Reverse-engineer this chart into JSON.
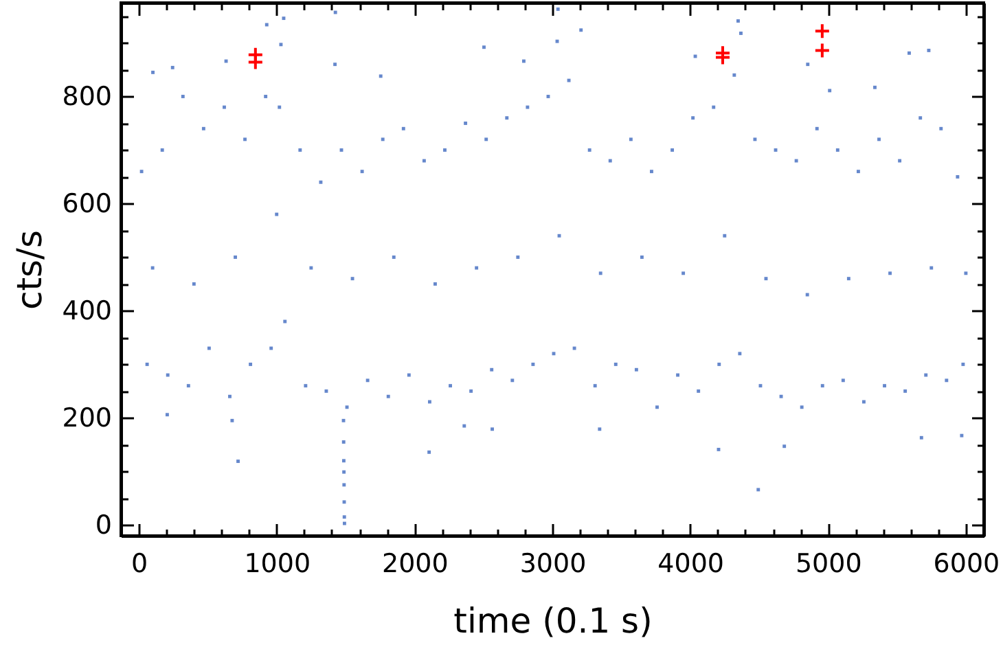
{
  "chart_data": {
    "type": "scatter",
    "xlabel": "time (0.1 s)",
    "ylabel": "cts/s",
    "xlim": [
      -130,
      6130
    ],
    "ylim": [
      -20,
      975
    ],
    "xticks": [
      0,
      {
        "value": 200,
        "label": null
      },
      {
        "value": 400,
        "label": null
      },
      {
        "value": 600,
        "label": null
      },
      {
        "value": 800,
        "label": null
      },
      1000,
      {
        "value": 1200,
        "label": null
      },
      {
        "value": 1400,
        "label": null
      },
      {
        "value": 1600,
        "label": null
      },
      {
        "value": 1800,
        "label": null
      },
      2000,
      {
        "value": 2200,
        "label": null
      },
      {
        "value": 2400,
        "label": null
      },
      {
        "value": 2600,
        "label": null
      },
      {
        "value": 2800,
        "label": null
      },
      3000,
      {
        "value": 3200,
        "label": null
      },
      {
        "value": 3400,
        "label": null
      },
      {
        "value": 3600,
        "label": null
      },
      {
        "value": 3800,
        "label": null
      },
      4000,
      {
        "value": 4200,
        "label": null
      },
      {
        "value": 4400,
        "label": null
      },
      {
        "value": 4600,
        "label": null
      },
      {
        "value": 4800,
        "label": null
      },
      5000,
      {
        "value": 5200,
        "label": null
      },
      {
        "value": 5400,
        "label": null
      },
      {
        "value": 5600,
        "label": null
      },
      {
        "value": 5800,
        "label": null
      },
      6000
    ],
    "yticks": [
      0,
      {
        "value": 50,
        "label": null
      },
      {
        "value": 100,
        "label": null
      },
      {
        "value": 150,
        "label": null
      },
      200,
      {
        "value": 250,
        "label": null
      },
      {
        "value": 300,
        "label": null
      },
      {
        "value": 350,
        "label": null
      },
      400,
      {
        "value": 450,
        "label": null
      },
      {
        "value": 500,
        "label": null
      },
      {
        "value": 550,
        "label": null
      },
      600,
      {
        "value": 650,
        "label": null
      },
      {
        "value": 700,
        "label": null
      },
      {
        "value": 750,
        "label": null
      },
      800,
      {
        "value": 850,
        "label": null
      },
      {
        "value": 900,
        "label": null
      },
      {
        "value": 950,
        "label": null
      }
    ],
    "series": [
      {
        "color": "#6688cc",
        "marker": "square",
        "x": [
          20,
          60,
          100,
          170,
          210,
          320,
          360,
          400,
          470,
          510,
          620,
          660,
          700,
          770,
          810,
          920,
          960,
          1000,
          1020,
          1060,
          1170,
          1210,
          1250,
          1320,
          1360,
          1470,
          1510,
          1550,
          1620,
          1660,
          1770,
          1810,
          1850,
          1920,
          1960,
          2070,
          2110,
          2150,
          2220,
          2260,
          2370,
          2410,
          2450,
          2520,
          2560,
          2670,
          2710,
          2750,
          2820,
          2860,
          2970,
          3010,
          3050,
          3120,
          3160,
          3270,
          3310,
          3350,
          3420,
          3460,
          3570,
          3610,
          3650,
          3720,
          3760,
          3870,
          3910,
          3950,
          4020,
          4060,
          4170,
          4210,
          4250,
          4320,
          4360,
          4470,
          4510,
          4550,
          4620,
          4660,
          4770,
          4810,
          4850,
          4920,
          4960,
          5070,
          5110,
          5150,
          5220,
          5260,
          5370,
          5410,
          5450,
          5520,
          5560,
          5670,
          5710,
          5750,
          5820,
          5860,
          5940,
          5980,
          6000,
          677,
          720,
          206,
          2106,
          2361,
          2564,
          3343,
          4206,
          4494,
          4683,
          5678,
          5970,
          1485,
          1486,
          1487,
          1488,
          1489,
          1490,
          1491,
          1492,
          1051,
          928,
          1426,
          1031,
          2504,
          1423,
          1755,
          102,
          245,
          633,
          3041,
          3208,
          4348,
          4368,
          2793,
          4037,
          5589,
          5731,
          5340,
          5012,
          4853,
          3035
        ],
        "values": [
          660,
          300,
          480,
          700,
          280,
          800,
          260,
          450,
          740,
          330,
          780,
          240,
          500,
          720,
          300,
          800,
          330,
          580,
          780,
          380,
          700,
          260,
          480,
          640,
          250,
          700,
          220,
          460,
          660,
          270,
          720,
          240,
          500,
          740,
          280,
          680,
          230,
          450,
          700,
          260,
          750,
          250,
          480,
          720,
          290,
          760,
          270,
          500,
          780,
          300,
          800,
          320,
          540,
          830,
          330,
          700,
          260,
          470,
          680,
          300,
          720,
          290,
          500,
          660,
          220,
          700,
          280,
          470,
          760,
          250,
          780,
          300,
          540,
          840,
          320,
          720,
          260,
          460,
          700,
          240,
          680,
          220,
          430,
          740,
          260,
          700,
          270,
          460,
          660,
          230,
          720,
          260,
          470,
          680,
          250,
          760,
          280,
          480,
          740,
          270,
          650,
          300,
          470,
          195,
          119,
          206,
          136,
          185,
          179,
          179,
          141,
          66,
          147,
          163,
          167,
          195,
          155,
          120,
          99,
          75,
          43,
          15,
          3,
          946,
          934,
          957,
          897,
          892,
          860,
          838,
          845,
          854,
          866,
          963,
          924,
          941,
          918,
          866,
          875,
          881,
          886,
          817,
          811,
          860,
          903
        ]
      },
      {
        "color": "#ff0000",
        "marker": "cross",
        "x": [
          846,
          846,
          4236,
          4236,
          4958,
          4958
        ],
        "values": [
          878,
          864,
          881,
          873,
          922,
          886
        ]
      }
    ]
  }
}
